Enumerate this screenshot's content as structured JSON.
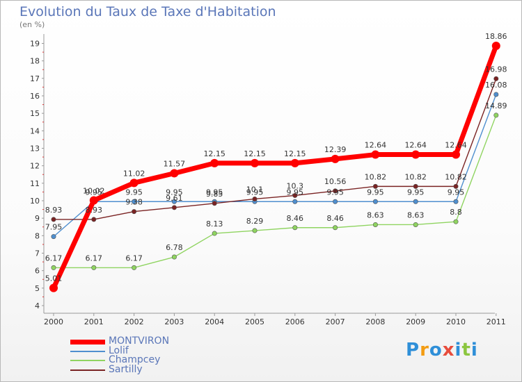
{
  "chart_data": {
    "type": "line",
    "title": "Evolution du Taux de Taxe d'Habitation",
    "subtitle": "(en %)",
    "x": [
      "2000",
      "2001",
      "2002",
      "2003",
      "2004",
      "2005",
      "2006",
      "2007",
      "2008",
      "2009",
      "2010",
      "2011"
    ],
    "ylim": [
      4,
      19
    ],
    "yticks": [
      4,
      5,
      6,
      7,
      8,
      9,
      10,
      11,
      12,
      13,
      14,
      15,
      16,
      17,
      18,
      19
    ],
    "grid": false,
    "legend_position": "bottom-left",
    "series": [
      {
        "name": "MONTVIRON",
        "color": "#ff0000",
        "values": [
          5.01,
          10.02,
          11.02,
          11.57,
          12.15,
          12.15,
          12.15,
          12.39,
          12.64,
          12.64,
          12.64,
          18.86
        ],
        "labels": [
          "5.01",
          "10.02",
          "11.02",
          "11.57",
          "12.15",
          "12.15",
          "12.15",
          "12.39",
          "12.64",
          "12.64",
          "12.64",
          "18.86"
        ]
      },
      {
        "name": "Lolif",
        "color": "#4f8fcf",
        "values": [
          7.95,
          9.95,
          9.95,
          9.95,
          9.95,
          9.95,
          9.95,
          9.95,
          9.95,
          9.95,
          9.95,
          16.08
        ],
        "labels": [
          "7.95",
          "9.95",
          "9.95",
          "9.95",
          "9.95",
          "9.95",
          "9.95",
          "9.95",
          "9.95",
          "9.95",
          "9.95",
          "16.08"
        ]
      },
      {
        "name": "Champcey",
        "color": "#8fd460",
        "values": [
          6.17,
          6.17,
          6.17,
          6.78,
          8.13,
          8.29,
          8.46,
          8.46,
          8.63,
          8.63,
          8.8,
          14.89
        ],
        "labels": [
          "6.17",
          "6.17",
          "6.17",
          "6.78",
          "8.13",
          "8.29",
          "8.46",
          "8.46",
          "8.63",
          "8.63",
          "8.8",
          "14.89"
        ]
      },
      {
        "name": "Sartilly",
        "color": "#7a2323",
        "values": [
          8.93,
          8.93,
          9.38,
          9.61,
          9.85,
          10.1,
          10.3,
          10.56,
          10.82,
          10.82,
          10.82,
          16.98
        ],
        "labels": [
          "8.93",
          "8.93",
          "9.38",
          "9.61",
          "9.85",
          "10.1",
          "10.3",
          "10.56",
          "10.82",
          "10.82",
          "10.82",
          "16.98"
        ]
      }
    ]
  },
  "logo": {
    "letters": [
      "P",
      "r",
      "o",
      "x",
      "i",
      "t",
      "i"
    ],
    "colors": [
      "#2f8fd8",
      "#f39c12",
      "#2f8fd8",
      "#e74c3c",
      "#2f8fd8",
      "#8cc63f",
      "#2f8fd8"
    ]
  }
}
